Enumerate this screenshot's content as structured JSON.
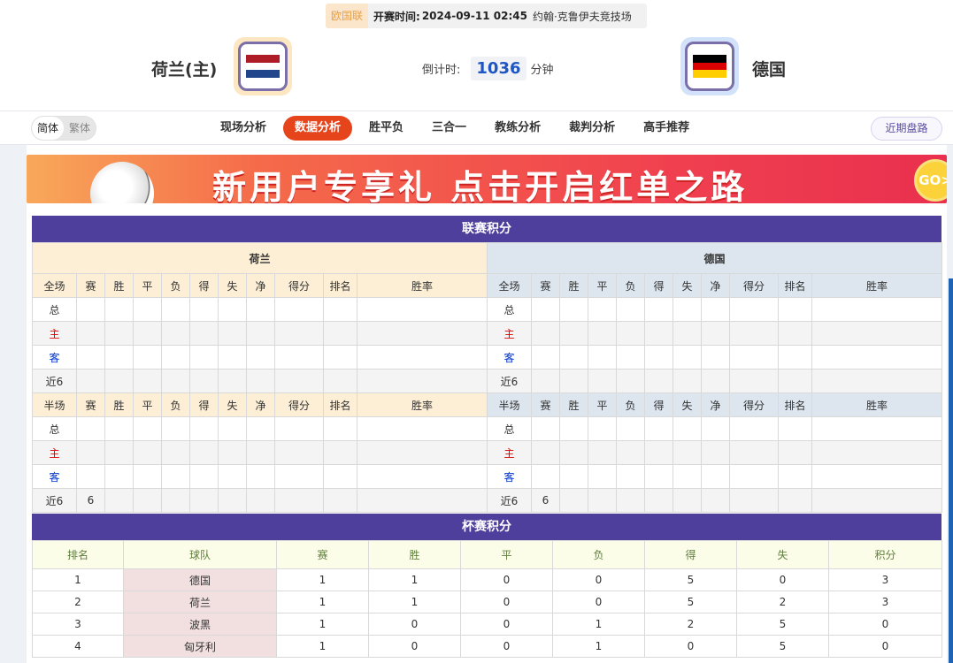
{
  "match_info": {
    "league": "欧国联",
    "time_label": "开赛时间:",
    "time": "2024-09-11 02:45",
    "venue": "约翰·克鲁伊夫竞技场"
  },
  "home_team": {
    "name": "荷兰(主)",
    "flag_colors": [
      "#ae1c28",
      "#ffffff",
      "#21468b"
    ]
  },
  "away_team": {
    "name": "德国",
    "flag_colors": [
      "#000000",
      "#dd0000",
      "#ffce00"
    ]
  },
  "countdown": {
    "label": "倒计时:",
    "value": "1036",
    "unit": "分钟"
  },
  "lang": {
    "simplified": "简体",
    "traditional": "繁体"
  },
  "tabs": [
    "现场分析",
    "数据分析",
    "胜平负",
    "三合一",
    "教练分析",
    "裁判分析",
    "高手推荐"
  ],
  "active_tab": "数据分析",
  "recent_button": "近期盘路",
  "banner": {
    "text": "新用户专享礼 点击开启红单之路",
    "go": "GO>"
  },
  "league_table": {
    "title": "联赛积分",
    "left_team": "荷兰",
    "right_team": "德国",
    "full_header": [
      "全场",
      "赛",
      "胜",
      "平",
      "负",
      "得",
      "失",
      "净",
      "得分",
      "排名",
      "胜率"
    ],
    "half_header": [
      "半场",
      "赛",
      "胜",
      "平",
      "负",
      "得",
      "失",
      "净",
      "得分",
      "排名",
      "胜率"
    ],
    "left_full": [
      [
        "总"
      ],
      [
        "主"
      ],
      [
        "客"
      ],
      [
        "近6"
      ]
    ],
    "left_half": [
      [
        "总"
      ],
      [
        "主"
      ],
      [
        "客"
      ],
      [
        "近6",
        "6"
      ]
    ],
    "right_full": [
      [
        "总"
      ],
      [
        "主"
      ],
      [
        "客"
      ],
      [
        "近6"
      ]
    ],
    "right_half": [
      [
        "总"
      ],
      [
        "主"
      ],
      [
        "客"
      ],
      [
        "近6",
        "6"
      ]
    ]
  },
  "cup_table": {
    "title": "杯赛积分",
    "headers": [
      "排名",
      "球队",
      "赛",
      "胜",
      "平",
      "负",
      "得",
      "失",
      "积分"
    ],
    "rows": [
      [
        "1",
        "德国",
        "1",
        "1",
        "0",
        "0",
        "5",
        "0",
        "3"
      ],
      [
        "2",
        "荷兰",
        "1",
        "1",
        "0",
        "0",
        "5",
        "2",
        "3"
      ],
      [
        "3",
        "波黑",
        "1",
        "0",
        "0",
        "1",
        "2",
        "5",
        "0"
      ],
      [
        "4",
        "匈牙利",
        "1",
        "0",
        "0",
        "1",
        "0",
        "5",
        "0"
      ]
    ]
  },
  "colors": {
    "accent": "#e6451c",
    "section_header": "#4f3f9c",
    "countdown": "#1f56c4"
  }
}
